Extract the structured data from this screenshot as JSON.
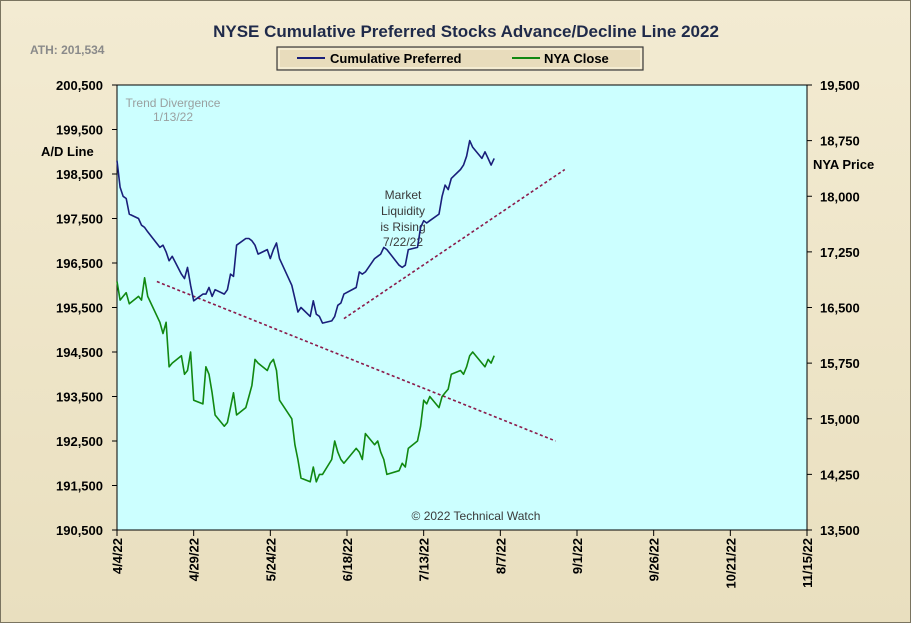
{
  "chart_data": {
    "type": "line",
    "title": "NYSE Cumulative  Preferred Stocks Advance/Decline  Line 2022",
    "ath_label": "ATH: 201,534",
    "ylabel_left": "A/D Line",
    "ylabel_right": "NYA Price",
    "copyright": "© 2022 Technical Watch",
    "colors": {
      "plot_bg": "#ccffff",
      "cumulative": "#1a1f7a",
      "nya": "#118811",
      "trendline": "#8b1a4a"
    },
    "ylim_left": [
      190500,
      200500
    ],
    "ylim_right": [
      13500,
      19500
    ],
    "xlim": [
      "2022-04-04",
      "2022-11-15"
    ],
    "left_ticks": [
      "200,500",
      "199,500",
      "198,500",
      "197,500",
      "196,500",
      "195,500",
      "194,500",
      "193,500",
      "192,500",
      "191,500",
      "190,500"
    ],
    "right_ticks": [
      "19,500",
      "18,750",
      "18,000",
      "17,250",
      "16,500",
      "15,750",
      "15,000",
      "14,250",
      "13,500"
    ],
    "x_ticks": [
      "4/4/22",
      "4/29/22",
      "5/24/22",
      "6/18/22",
      "7/13/22",
      "8/7/22",
      "9/1/22",
      "9/26/22",
      "10/21/22",
      "11/15/22"
    ],
    "series": [
      {
        "name": "Cumulative Preferred",
        "axis": "left",
        "x": [
          "2022-04-04",
          "2022-04-05",
          "2022-04-06",
          "2022-04-07",
          "2022-04-08",
          "2022-04-11",
          "2022-04-12",
          "2022-04-13",
          "2022-04-14",
          "2022-04-18",
          "2022-04-19",
          "2022-04-20",
          "2022-04-21",
          "2022-04-22",
          "2022-04-25",
          "2022-04-26",
          "2022-04-27",
          "2022-04-28",
          "2022-04-29",
          "2022-05-02",
          "2022-05-03",
          "2022-05-04",
          "2022-05-05",
          "2022-05-06",
          "2022-05-09",
          "2022-05-10",
          "2022-05-11",
          "2022-05-12",
          "2022-05-13",
          "2022-05-16",
          "2022-05-17",
          "2022-05-18",
          "2022-05-19",
          "2022-05-20",
          "2022-05-23",
          "2022-05-24",
          "2022-05-25",
          "2022-05-26",
          "2022-05-27",
          "2022-05-31",
          "2022-06-01",
          "2022-06-02",
          "2022-06-03",
          "2022-06-06",
          "2022-06-07",
          "2022-06-08",
          "2022-06-09",
          "2022-06-10",
          "2022-06-13",
          "2022-06-14",
          "2022-06-15",
          "2022-06-16",
          "2022-06-17",
          "2022-06-21",
          "2022-06-22",
          "2022-06-23",
          "2022-06-24",
          "2022-06-27",
          "2022-06-28",
          "2022-06-29",
          "2022-06-30",
          "2022-07-01",
          "2022-07-05",
          "2022-07-06",
          "2022-07-07",
          "2022-07-08",
          "2022-07-11",
          "2022-07-12",
          "2022-07-13",
          "2022-07-14",
          "2022-07-15",
          "2022-07-18",
          "2022-07-19",
          "2022-07-20",
          "2022-07-21",
          "2022-07-22",
          "2022-07-25",
          "2022-07-26",
          "2022-07-27",
          "2022-07-28",
          "2022-07-29",
          "2022-08-01",
          "2022-08-02",
          "2022-08-03",
          "2022-08-04",
          "2022-08-05"
        ],
        "values": [
          198800,
          198200,
          198000,
          197950,
          197600,
          197500,
          197350,
          197300,
          197200,
          196850,
          196900,
          196750,
          196550,
          196650,
          196250,
          196150,
          196400,
          196000,
          195650,
          195800,
          195800,
          195950,
          195750,
          195900,
          195800,
          195900,
          196250,
          196200,
          196900,
          197050,
          197050,
          197000,
          196900,
          196700,
          196800,
          196600,
          196800,
          196950,
          196600,
          196000,
          195700,
          195400,
          195500,
          195300,
          195650,
          195350,
          195300,
          195150,
          195200,
          195300,
          195550,
          195600,
          195800,
          195950,
          196300,
          196250,
          196300,
          196600,
          196650,
          196700,
          196850,
          196800,
          196450,
          196400,
          196450,
          196800,
          196850,
          197300,
          197450,
          197400,
          197450,
          197600,
          198000,
          198250,
          198150,
          198400,
          198600,
          198700,
          198900,
          199250,
          199100,
          198850,
          199000,
          198850,
          198700,
          198850
        ]
      },
      {
        "name": "NYA Close",
        "axis": "right",
        "x": [
          "2022-04-04",
          "2022-04-05",
          "2022-04-06",
          "2022-04-07",
          "2022-04-08",
          "2022-04-11",
          "2022-04-12",
          "2022-04-13",
          "2022-04-14",
          "2022-04-18",
          "2022-04-19",
          "2022-04-20",
          "2022-04-21",
          "2022-04-22",
          "2022-04-25",
          "2022-04-26",
          "2022-04-27",
          "2022-04-28",
          "2022-04-29",
          "2022-05-02",
          "2022-05-03",
          "2022-05-04",
          "2022-05-05",
          "2022-05-06",
          "2022-05-09",
          "2022-05-10",
          "2022-05-11",
          "2022-05-12",
          "2022-05-13",
          "2022-05-16",
          "2022-05-17",
          "2022-05-18",
          "2022-05-19",
          "2022-05-20",
          "2022-05-23",
          "2022-05-24",
          "2022-05-25",
          "2022-05-26",
          "2022-05-27",
          "2022-05-31",
          "2022-06-01",
          "2022-06-02",
          "2022-06-03",
          "2022-06-06",
          "2022-06-07",
          "2022-06-08",
          "2022-06-09",
          "2022-06-10",
          "2022-06-13",
          "2022-06-14",
          "2022-06-15",
          "2022-06-16",
          "2022-06-17",
          "2022-06-21",
          "2022-06-22",
          "2022-06-23",
          "2022-06-24",
          "2022-06-27",
          "2022-06-28",
          "2022-06-29",
          "2022-06-30",
          "2022-07-01",
          "2022-07-05",
          "2022-07-06",
          "2022-07-07",
          "2022-07-08",
          "2022-07-11",
          "2022-07-12",
          "2022-07-13",
          "2022-07-14",
          "2022-07-15",
          "2022-07-18",
          "2022-07-19",
          "2022-07-20",
          "2022-07-21",
          "2022-07-22",
          "2022-07-25",
          "2022-07-26",
          "2022-07-27",
          "2022-07-28",
          "2022-07-29",
          "2022-08-01",
          "2022-08-02",
          "2022-08-03",
          "2022-08-04",
          "2022-08-05"
        ],
        "values": [
          16850,
          16600,
          16650,
          16700,
          16550,
          16650,
          16600,
          16900,
          16650,
          16300,
          16150,
          16300,
          15700,
          15750,
          15850,
          15600,
          15650,
          15900,
          15250,
          15200,
          15700,
          15600,
          15350,
          15050,
          14900,
          14950,
          15150,
          15350,
          15050,
          15150,
          15300,
          15450,
          15800,
          15750,
          15650,
          15750,
          15800,
          15650,
          15250,
          15000,
          14650,
          14450,
          14200,
          14150,
          14350,
          14150,
          14250,
          14250,
          14450,
          14700,
          14550,
          14450,
          14400,
          14600,
          14550,
          14450,
          14800,
          14650,
          14700,
          14550,
          14450,
          14250,
          14300,
          14400,
          14350,
          14600,
          14700,
          14900,
          15250,
          15200,
          15300,
          15150,
          15300,
          15350,
          15400,
          15600,
          15650,
          15600,
          15700,
          15850,
          15900,
          15750,
          15700,
          15800,
          15750,
          15850
        ]
      }
    ],
    "trendlines": [
      {
        "axis": "left",
        "from": [
          "2022-06-17",
          195250
        ],
        "to": [
          "2022-08-28",
          198600
        ]
      },
      {
        "axis": "right",
        "from": [
          "2022-04-17",
          16850
        ],
        "to": [
          "2022-08-25",
          14700
        ]
      }
    ],
    "annotations": {
      "trend_divergence": [
        "Trend  Divergence",
        "1/13/22"
      ],
      "market_liquidity": [
        "Market",
        "Liquidity",
        "is Rising",
        "7/22/22"
      ]
    },
    "legend": {
      "placement": "top-center"
    }
  }
}
